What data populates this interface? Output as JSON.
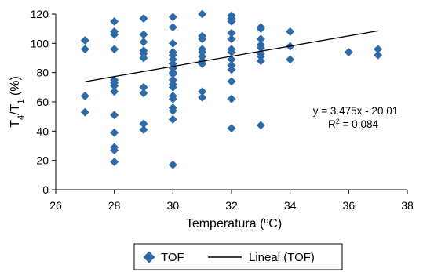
{
  "chart_data": {
    "type": "scatter",
    "xlabel": "Temperatura (ºC)",
    "ylabel": {
      "base1": "T",
      "sub1": "4",
      "sep": "/T",
      "sub2": "1",
      "unit": " (%)"
    },
    "xlim": [
      26,
      38
    ],
    "ylim": [
      0,
      120
    ],
    "xticks": [
      26,
      28,
      30,
      32,
      34,
      36,
      38
    ],
    "yticks": [
      0,
      20,
      40,
      60,
      80,
      100,
      120
    ],
    "grid": "none",
    "legend_placement": "bottom",
    "colors": {
      "marker": "#2e6aa8",
      "trend": "#000000",
      "axis": "#000000"
    },
    "series": [
      {
        "name": "TOF",
        "marker": "diamond",
        "points": [
          [
            27,
            102
          ],
          [
            27,
            96
          ],
          [
            27,
            64
          ],
          [
            27,
            53
          ],
          [
            28,
            115
          ],
          [
            28,
            108
          ],
          [
            28,
            106
          ],
          [
            28,
            96
          ],
          [
            28,
            75
          ],
          [
            28,
            73
          ],
          [
            28,
            71
          ],
          [
            28,
            67
          ],
          [
            28,
            51
          ],
          [
            28,
            39
          ],
          [
            28,
            29
          ],
          [
            28,
            27
          ],
          [
            28,
            19
          ],
          [
            29,
            117
          ],
          [
            29,
            106
          ],
          [
            29,
            101
          ],
          [
            29,
            95
          ],
          [
            29,
            93
          ],
          [
            29,
            90
          ],
          [
            29,
            70
          ],
          [
            29,
            66
          ],
          [
            29,
            45
          ],
          [
            29,
            41
          ],
          [
            30,
            118
          ],
          [
            30,
            111
          ],
          [
            30,
            100
          ],
          [
            30,
            94
          ],
          [
            30,
            92
          ],
          [
            30,
            89
          ],
          [
            30,
            86
          ],
          [
            30,
            83
          ],
          [
            30,
            80
          ],
          [
            30,
            79
          ],
          [
            30,
            75
          ],
          [
            30,
            72
          ],
          [
            30,
            70
          ],
          [
            30,
            64
          ],
          [
            30,
            62
          ],
          [
            30,
            56
          ],
          [
            30,
            54
          ],
          [
            30,
            48
          ],
          [
            30,
            17
          ],
          [
            31,
            120
          ],
          [
            31,
            105
          ],
          [
            31,
            103
          ],
          [
            31,
            96
          ],
          [
            31,
            94
          ],
          [
            31,
            91
          ],
          [
            31,
            88
          ],
          [
            31,
            86
          ],
          [
            31,
            67
          ],
          [
            31,
            63
          ],
          [
            32,
            119
          ],
          [
            32,
            117
          ],
          [
            32,
            115
          ],
          [
            32,
            107
          ],
          [
            32,
            103
          ],
          [
            32,
            96
          ],
          [
            32,
            94
          ],
          [
            32,
            89
          ],
          [
            32,
            85
          ],
          [
            32,
            82
          ],
          [
            32,
            74
          ],
          [
            32,
            62
          ],
          [
            32,
            42
          ],
          [
            33,
            111
          ],
          [
            33,
            110
          ],
          [
            33,
            103
          ],
          [
            33,
            99
          ],
          [
            33,
            97
          ],
          [
            33,
            93
          ],
          [
            33,
            91
          ],
          [
            33,
            88
          ],
          [
            33,
            44
          ],
          [
            34,
            108
          ],
          [
            34,
            98
          ],
          [
            34,
            89
          ],
          [
            36,
            94
          ],
          [
            37,
            96
          ],
          [
            37,
            92
          ]
        ]
      }
    ],
    "trendline": {
      "name": "Lineal (TOF)",
      "slope": 3.475,
      "intercept": -20.01,
      "x_range": [
        27,
        37
      ],
      "equation_text": "y = 3.475x - 20,01",
      "r2_text": {
        "prefix": "R",
        "sup": "2",
        "value": " = 0,084"
      }
    }
  }
}
